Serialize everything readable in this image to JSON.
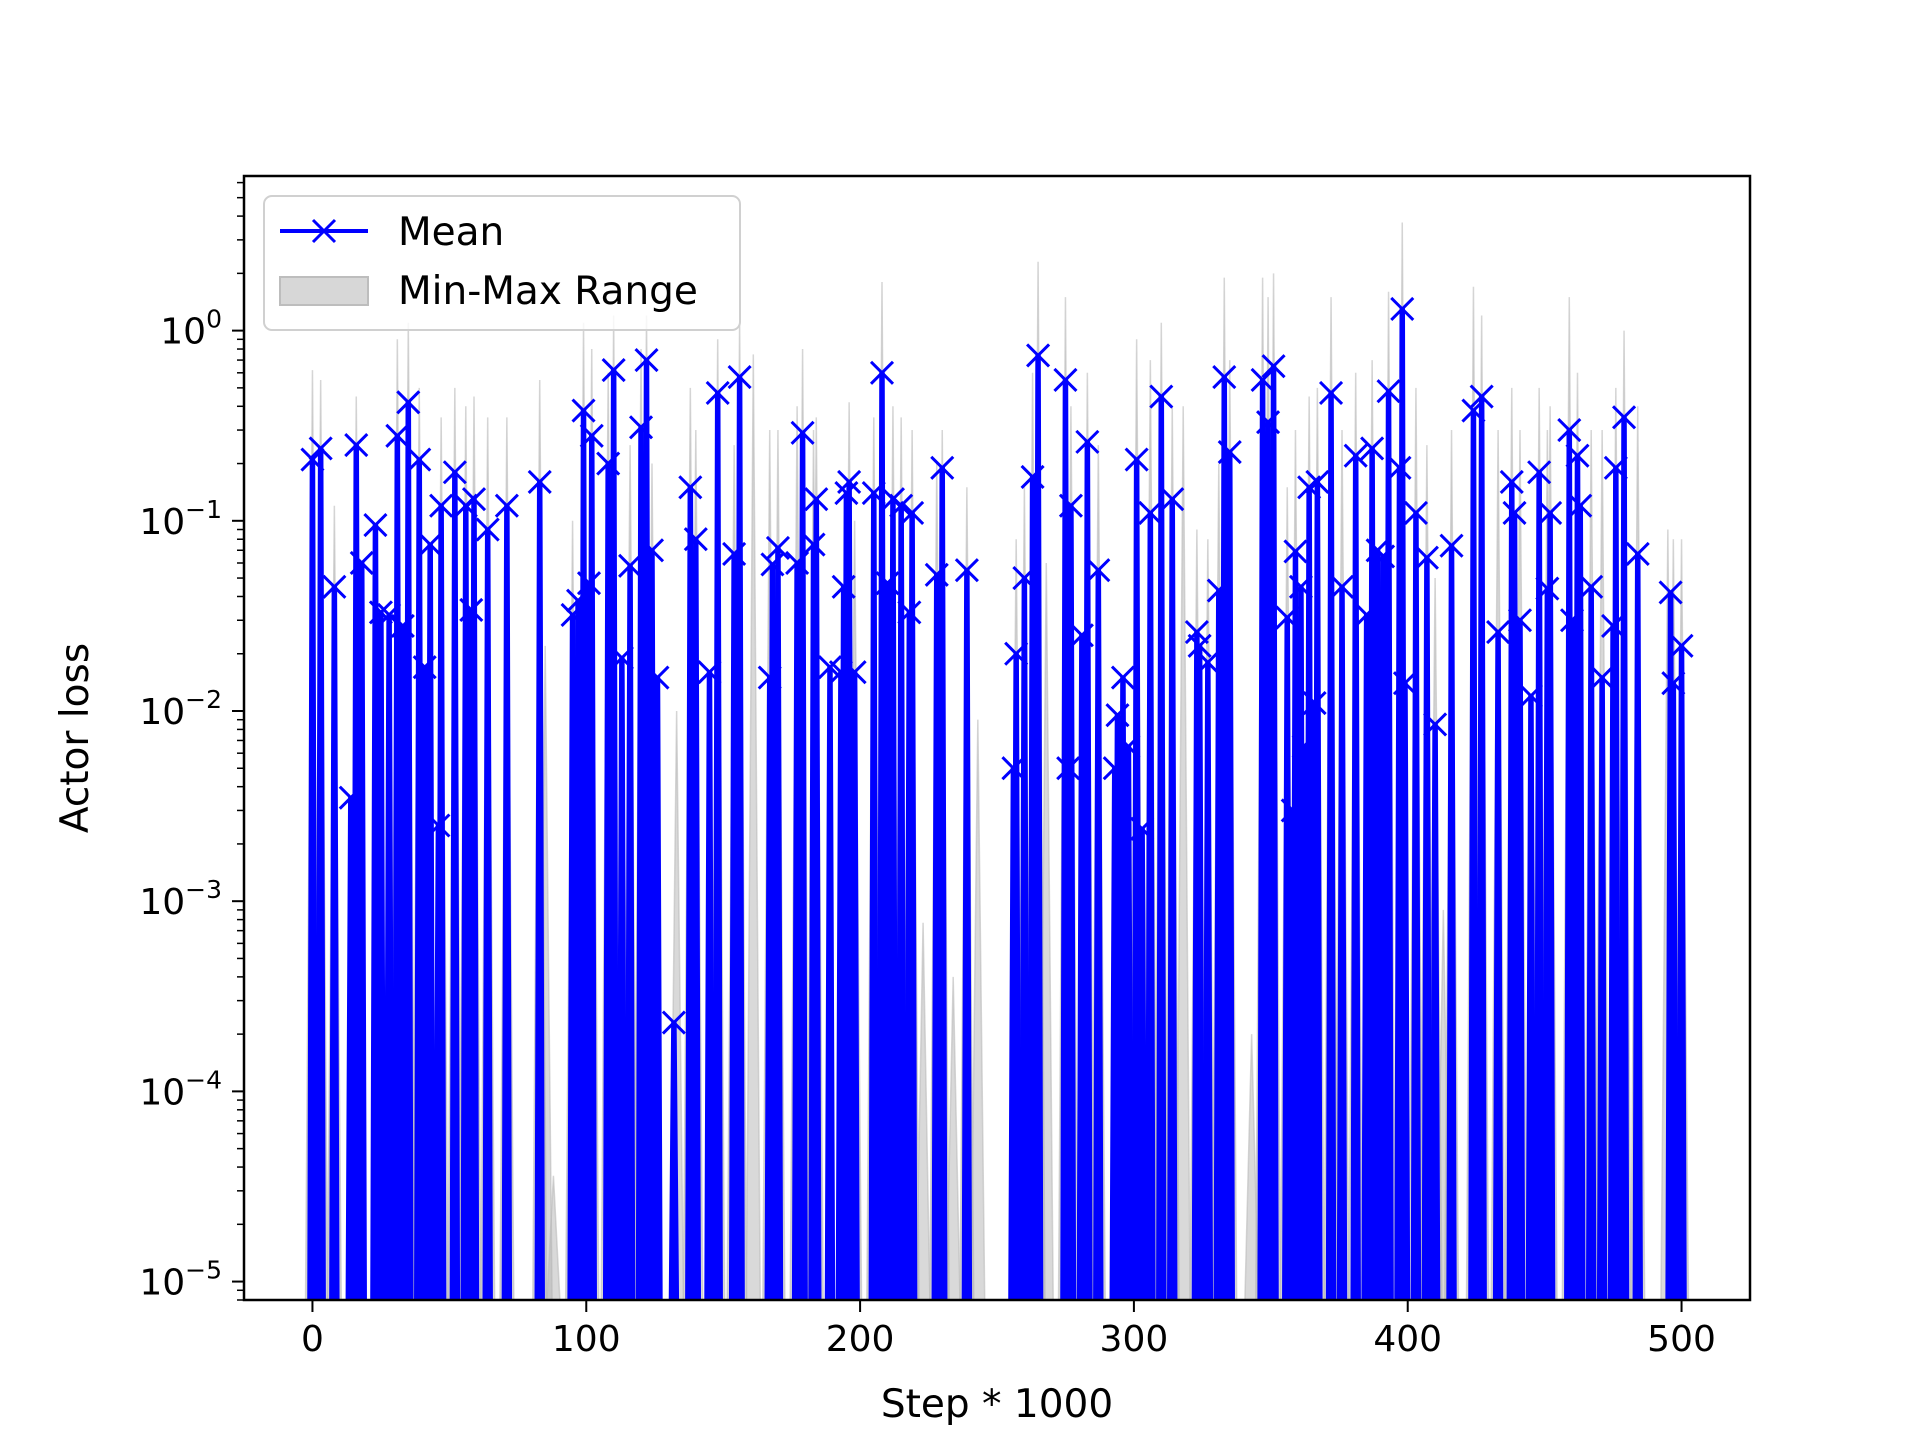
{
  "chart_data": {
    "type": "line",
    "title": "",
    "xlabel": "Step * 1000",
    "ylabel": "Actor loss",
    "yscale": "log",
    "xlim": [
      -25,
      525
    ],
    "ylim": [
      8e-06,
      6.5
    ],
    "x_ticks": [
      {
        "value": 0,
        "label": "0"
      },
      {
        "value": 100,
        "label": "100"
      },
      {
        "value": 200,
        "label": "200"
      },
      {
        "value": 300,
        "label": "300"
      },
      {
        "value": 400,
        "label": "400"
      },
      {
        "value": 500,
        "label": "500"
      }
    ],
    "y_ticks": [
      {
        "value": 1e-05,
        "base": "10",
        "exp": "−5"
      },
      {
        "value": 0.0001,
        "base": "10",
        "exp": "−4"
      },
      {
        "value": 0.001,
        "base": "10",
        "exp": "−3"
      },
      {
        "value": 0.01,
        "base": "10",
        "exp": "−2"
      },
      {
        "value": 0.1,
        "base": "10",
        "exp": "−1"
      },
      {
        "value": 1,
        "base": "10",
        "exp": "0"
      }
    ],
    "legend": {
      "position": "upper-left",
      "entries": [
        "Mean",
        "Min-Max Range"
      ]
    },
    "grid": false,
    "series": [
      {
        "name": "Mean",
        "color": "#0000ff",
        "marker": "x",
        "points": [
          [
            0,
            0.21
          ],
          [
            3,
            0.24
          ],
          [
            8,
            0.045
          ],
          [
            14,
            0.0035
          ],
          [
            16,
            0.25
          ],
          [
            18,
            0.06
          ],
          [
            23,
            0.095
          ],
          [
            25,
            0.033
          ],
          [
            28,
            0.032
          ],
          [
            31,
            0.28
          ],
          [
            33,
            0.028
          ],
          [
            35,
            0.42
          ],
          [
            39,
            0.21
          ],
          [
            41,
            0.017
          ],
          [
            43,
            0.075
          ],
          [
            46,
            0.0025
          ],
          [
            47,
            0.12
          ],
          [
            52,
            0.18
          ],
          [
            56,
            0.12
          ],
          [
            58,
            0.034
          ],
          [
            59,
            0.13
          ],
          [
            64,
            0.09
          ],
          [
            71,
            0.12
          ],
          [
            83,
            0.16
          ],
          [
            95,
            0.032
          ],
          [
            97,
            0.038
          ],
          [
            99,
            0.38
          ],
          [
            101,
            0.047
          ],
          [
            102,
            0.28
          ],
          [
            108,
            0.2
          ],
          [
            110,
            0.62
          ],
          [
            113,
            0.019
          ],
          [
            116,
            0.058
          ],
          [
            120,
            0.31
          ],
          [
            122,
            0.7
          ],
          [
            124,
            0.07
          ],
          [
            126,
            0.015
          ],
          [
            132,
            0.00023
          ],
          [
            138,
            0.15
          ],
          [
            140,
            0.08
          ],
          [
            145,
            0.016
          ],
          [
            148,
            0.47
          ],
          [
            154,
            0.067
          ],
          [
            156,
            0.57
          ],
          [
            167,
            0.015
          ],
          [
            168,
            0.059
          ],
          [
            170,
            0.072
          ],
          [
            177,
            0.06
          ],
          [
            179,
            0.29
          ],
          [
            183,
            0.075
          ],
          [
            184,
            0.13
          ],
          [
            189,
            0.017
          ],
          [
            193,
            0.016
          ],
          [
            194,
            0.045
          ],
          [
            195,
            0.14
          ],
          [
            196,
            0.16
          ],
          [
            198,
            0.016
          ],
          [
            205,
            0.14
          ],
          [
            208,
            0.6
          ],
          [
            210,
            0.047
          ],
          [
            212,
            0.13
          ],
          [
            215,
            0.12
          ],
          [
            218,
            0.033
          ],
          [
            219,
            0.11
          ],
          [
            228,
            0.052
          ],
          [
            230,
            0.19
          ],
          [
            239,
            0.055
          ],
          [
            256,
            0.005
          ],
          [
            257,
            0.02
          ],
          [
            260,
            0.05
          ],
          [
            263,
            0.17
          ],
          [
            265,
            0.74
          ],
          [
            275,
            0.55
          ],
          [
            276,
            0.005
          ],
          [
            277,
            0.12
          ],
          [
            281,
            0.025
          ],
          [
            283,
            0.26
          ],
          [
            287,
            0.055
          ],
          [
            293,
            0.005
          ],
          [
            294,
            0.0095
          ],
          [
            296,
            0.015
          ],
          [
            298,
            0.0065
          ],
          [
            301,
            0.21
          ],
          [
            303,
            0.0024
          ],
          [
            306,
            0.11
          ],
          [
            310,
            0.45
          ],
          [
            314,
            0.13
          ],
          [
            323,
            0.026
          ],
          [
            324,
            0.022
          ],
          [
            327,
            0.018
          ],
          [
            331,
            0.043
          ],
          [
            333,
            0.57
          ],
          [
            335,
            0.23
          ],
          [
            347,
            0.55
          ],
          [
            349,
            0.33
          ],
          [
            351,
            0.65
          ],
          [
            356,
            0.031
          ],
          [
            358,
            0.003
          ],
          [
            359,
            0.069
          ],
          [
            361,
            0.045
          ],
          [
            362,
            0.0065
          ],
          [
            364,
            0.15
          ],
          [
            366,
            0.011
          ],
          [
            367,
            0.16
          ],
          [
            372,
            0.47
          ],
          [
            376,
            0.045
          ],
          [
            381,
            0.22
          ],
          [
            385,
            0.032
          ],
          [
            387,
            0.24
          ],
          [
            389,
            0.07
          ],
          [
            391,
            0.065
          ],
          [
            393,
            0.48
          ],
          [
            397,
            0.19
          ],
          [
            398,
            1.3
          ],
          [
            399,
            0.014
          ],
          [
            403,
            0.11
          ],
          [
            407,
            0.064
          ],
          [
            410,
            0.0085
          ],
          [
            416,
            0.074
          ],
          [
            424,
            0.38
          ],
          [
            427,
            0.45
          ],
          [
            433,
            0.026
          ],
          [
            438,
            0.16
          ],
          [
            439,
            0.11
          ],
          [
            441,
            0.03
          ],
          [
            445,
            0.012
          ],
          [
            448,
            0.18
          ],
          [
            451,
            0.044
          ],
          [
            452,
            0.11
          ],
          [
            459,
            0.3
          ],
          [
            460,
            0.03
          ],
          [
            462,
            0.22
          ],
          [
            463,
            0.12
          ],
          [
            467,
            0.045
          ],
          [
            471,
            0.015
          ],
          [
            475,
            0.028
          ],
          [
            476,
            0.19
          ],
          [
            479,
            0.35
          ],
          [
            484,
            0.067
          ],
          [
            496,
            0.042
          ],
          [
            497,
            0.014
          ],
          [
            500,
            0.022
          ]
        ]
      },
      {
        "name": "Min-Max Range",
        "color": "#c8c8c8",
        "points": [
          [
            0,
            0.62
          ],
          [
            3,
            0.55
          ],
          [
            8,
            0.12
          ],
          [
            16,
            0.45
          ],
          [
            31,
            0.9
          ],
          [
            35,
            1.1
          ],
          [
            39,
            0.5
          ],
          [
            47,
            0.35
          ],
          [
            52,
            0.5
          ],
          [
            56,
            0.4
          ],
          [
            59,
            0.45
          ],
          [
            64,
            0.35
          ],
          [
            71,
            0.35
          ],
          [
            83,
            0.55
          ],
          [
            85,
            0.022
          ],
          [
            88,
            3.6e-05
          ],
          [
            95,
            0.1
          ],
          [
            99,
            1.1
          ],
          [
            102,
            0.8
          ],
          [
            108,
            0.6
          ],
          [
            110,
            1.2
          ],
          [
            116,
            0.25
          ],
          [
            120,
            0.8
          ],
          [
            122,
            1.2
          ],
          [
            124,
            0.2
          ],
          [
            133,
            0.01
          ],
          [
            138,
            0.5
          ],
          [
            140,
            0.3
          ],
          [
            148,
            0.9
          ],
          [
            154,
            0.25
          ],
          [
            156,
            1.1
          ],
          [
            161,
            0.75
          ],
          [
            167,
            0.3
          ],
          [
            170,
            0.3
          ],
          [
            177,
            0.4
          ],
          [
            179,
            0.8
          ],
          [
            183,
            0.3
          ],
          [
            184,
            0.35
          ],
          [
            196,
            0.42
          ],
          [
            198,
            0.1
          ],
          [
            205,
            0.35
          ],
          [
            208,
            1.8
          ],
          [
            212,
            0.4
          ],
          [
            215,
            0.35
          ],
          [
            219,
            0.3
          ],
          [
            223,
            0.00077
          ],
          [
            228,
            0.2
          ],
          [
            230,
            0.3
          ],
          [
            234,
            0.0004
          ],
          [
            239,
            0.15
          ],
          [
            243,
            0.009
          ],
          [
            257,
            0.08
          ],
          [
            260,
            0.15
          ],
          [
            263,
            0.6
          ],
          [
            265,
            2.3
          ],
          [
            268,
            0.06
          ],
          [
            275,
            1.5
          ],
          [
            277,
            0.4
          ],
          [
            283,
            0.6
          ],
          [
            287,
            0.25
          ],
          [
            301,
            0.9
          ],
          [
            306,
            0.7
          ],
          [
            310,
            1.1
          ],
          [
            314,
            0.4
          ],
          [
            318,
            0.4
          ],
          [
            323,
            0.09
          ],
          [
            327,
            0.08
          ],
          [
            331,
            0.2
          ],
          [
            333,
            1.9
          ],
          [
            335,
            0.7
          ],
          [
            343,
            0.0002
          ],
          [
            347,
            1.9
          ],
          [
            349,
            1.5
          ],
          [
            351,
            2
          ],
          [
            356,
            0.15
          ],
          [
            359,
            0.3
          ],
          [
            364,
            0.45
          ],
          [
            367,
            0.5
          ],
          [
            372,
            1.5
          ],
          [
            376,
            0.3
          ],
          [
            381,
            0.6
          ],
          [
            387,
            0.7
          ],
          [
            393,
            1.6
          ],
          [
            398,
            3.7
          ],
          [
            403,
            0.5
          ],
          [
            407,
            0.25
          ],
          [
            410,
            0.05
          ],
          [
            413,
            0.0009
          ],
          [
            416,
            0.3
          ],
          [
            424,
            1.7
          ],
          [
            427,
            1.2
          ],
          [
            433,
            0.3
          ],
          [
            438,
            0.5
          ],
          [
            441,
            0.3
          ],
          [
            448,
            0.5
          ],
          [
            451,
            0.3
          ],
          [
            452,
            0.4
          ],
          [
            459,
            1.5
          ],
          [
            462,
            0.6
          ],
          [
            467,
            0.3
          ],
          [
            471,
            0.3
          ],
          [
            476,
            0.5
          ],
          [
            479,
            1
          ],
          [
            484,
            0.4
          ],
          [
            495,
            0.09
          ],
          [
            497,
            0.08
          ],
          [
            500,
            0.08
          ]
        ]
      }
    ]
  }
}
